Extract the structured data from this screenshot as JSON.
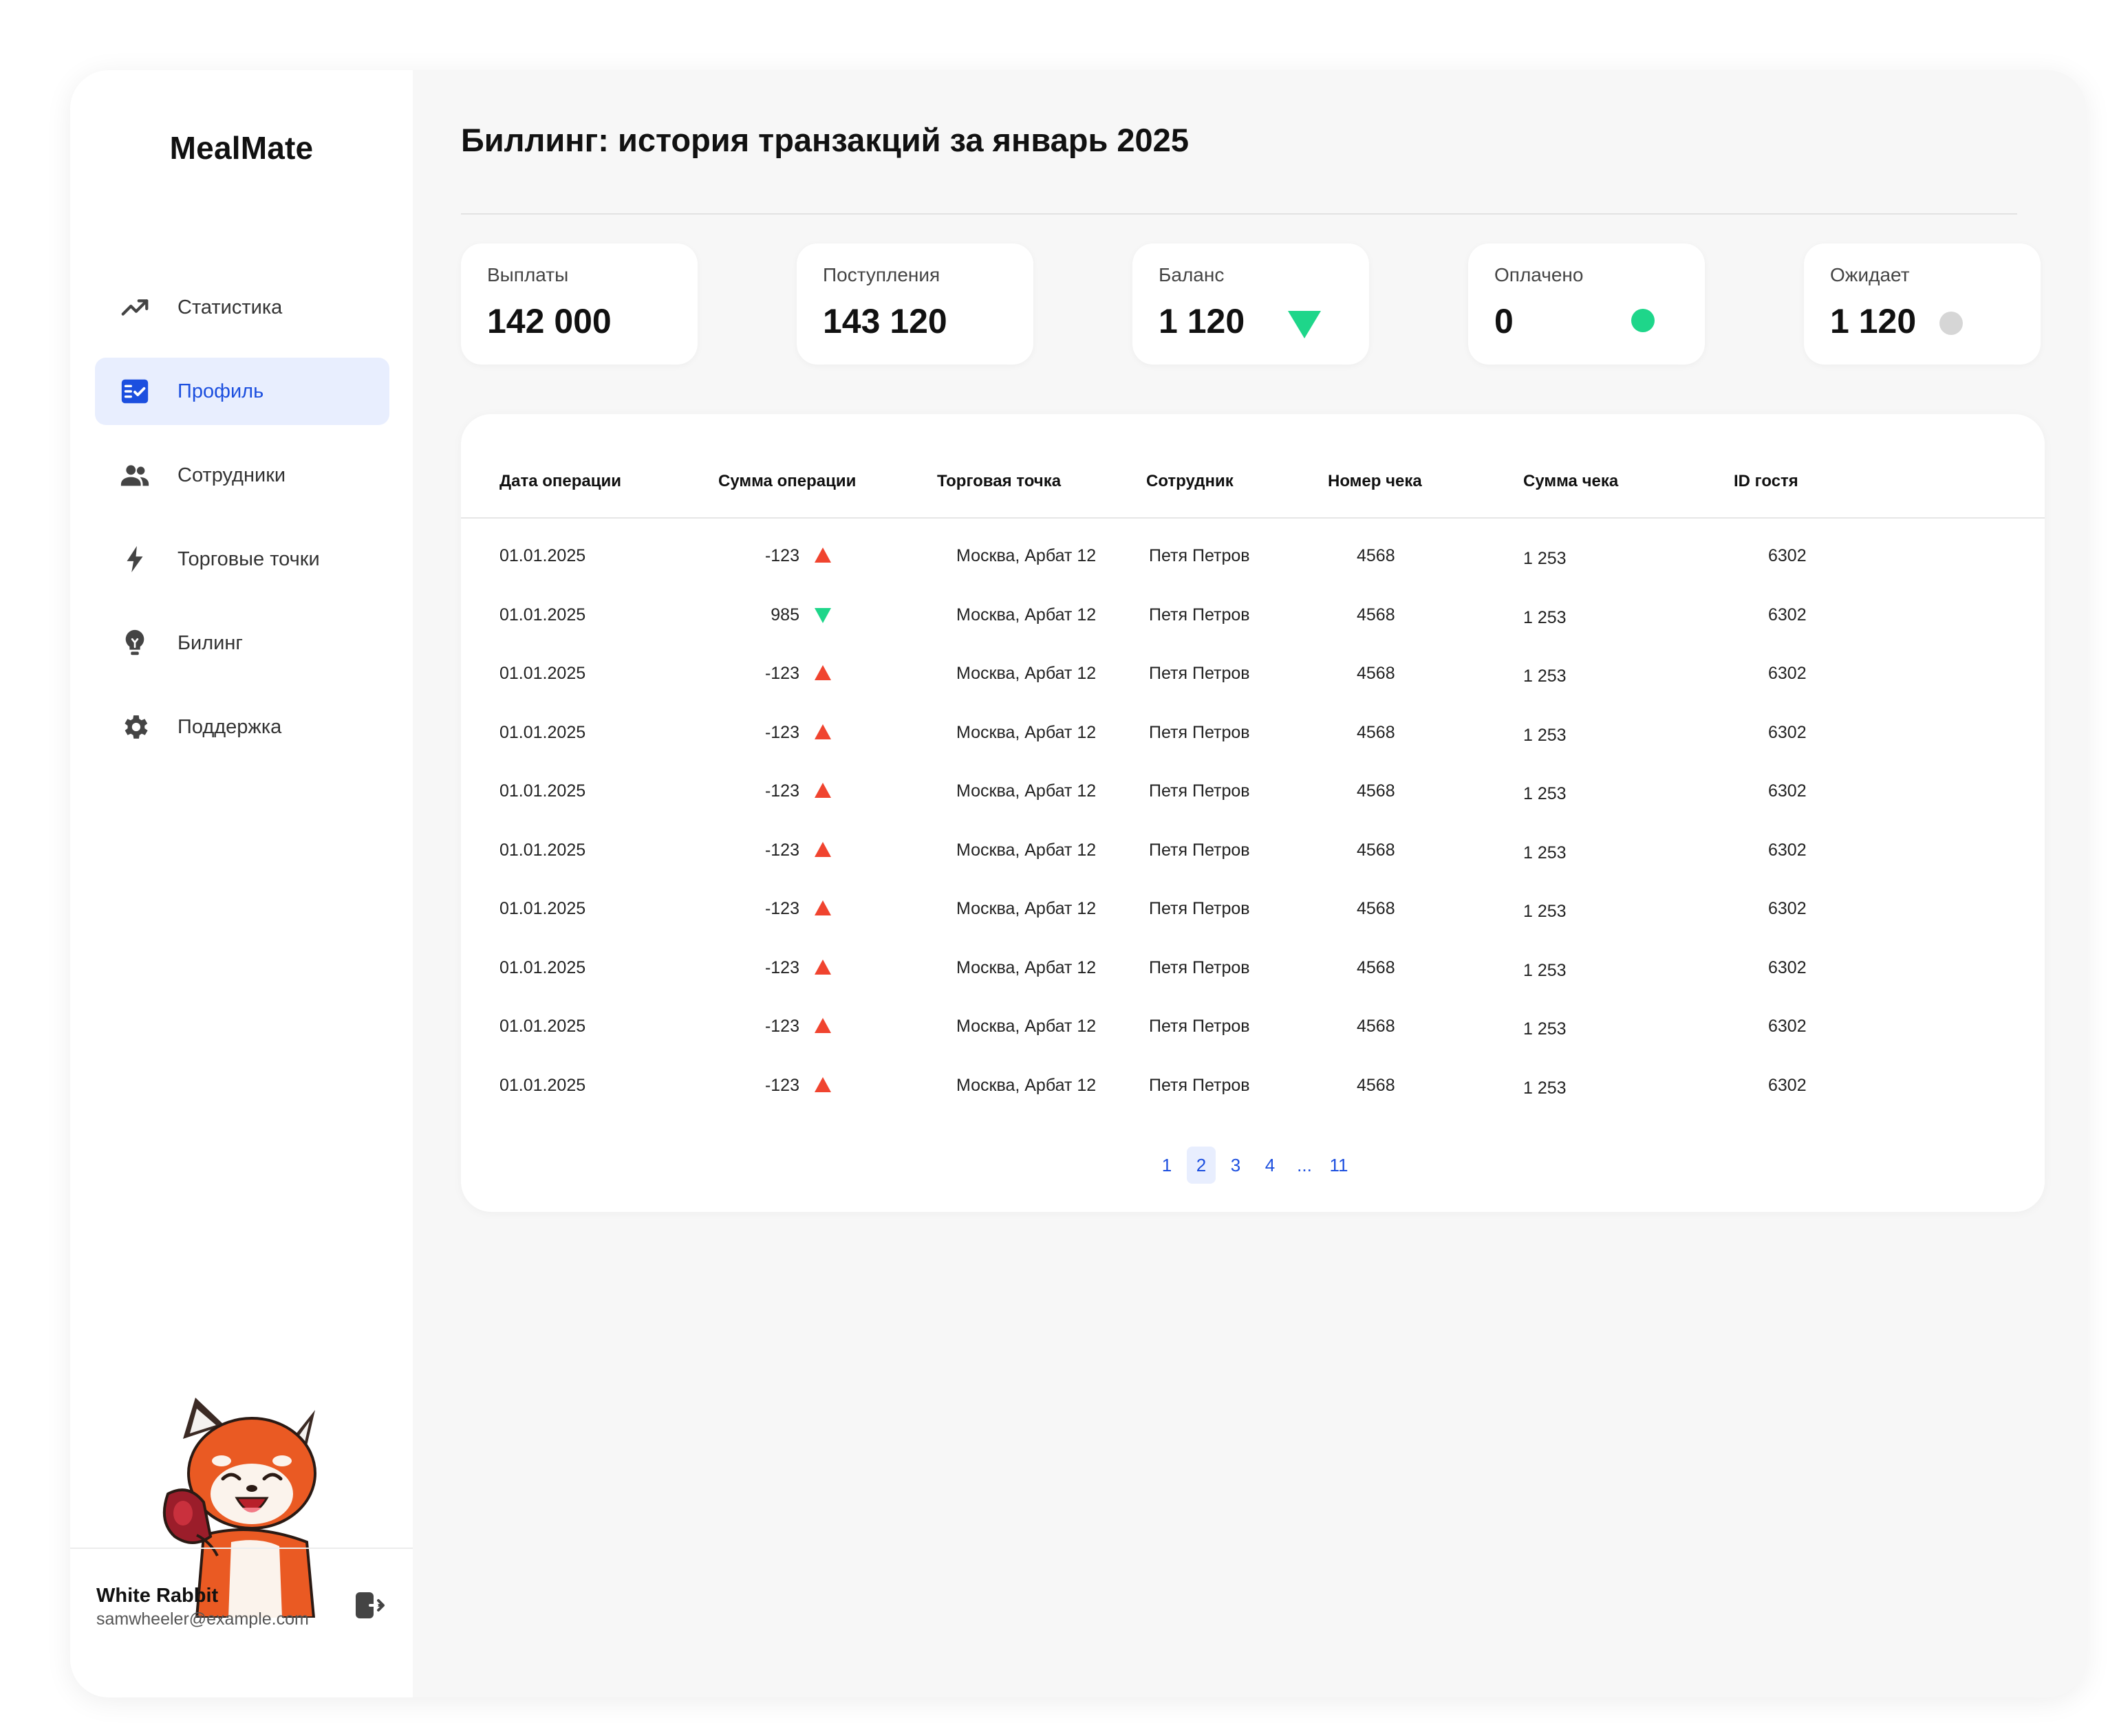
{
  "app": {
    "name": "MealMate"
  },
  "sidebar": {
    "items": [
      {
        "label": "Статистика",
        "icon": "trending-up-icon",
        "active": false
      },
      {
        "label": "Профиль",
        "icon": "checklist-icon",
        "active": true
      },
      {
        "label": "Сотрудники",
        "icon": "people-icon",
        "active": false
      },
      {
        "label": "Торговые точки",
        "icon": "lightning-icon",
        "active": false
      },
      {
        "label": "Билинг",
        "icon": "lightbulb-icon",
        "active": false
      },
      {
        "label": "Поддержка",
        "icon": "gear-icon",
        "active": false
      }
    ],
    "user": {
      "name": "White Rabbit",
      "email": "samwheeler@example.com"
    }
  },
  "page": {
    "title": "Биллинг: история транзакций за январь 2025"
  },
  "stats": [
    {
      "label": "Выплаты",
      "value": "142 000",
      "indicator": "none"
    },
    {
      "label": "Поступления",
      "value": "143 120",
      "indicator": "none"
    },
    {
      "label": "Баланс",
      "value": "1 120",
      "indicator": "triangle-down-green"
    },
    {
      "label": "Оплачено",
      "value": "0",
      "indicator": "dot-green"
    },
    {
      "label": "Ожидает",
      "value": "1 120",
      "indicator": "dot-gray"
    }
  ],
  "table": {
    "headers": [
      "Дата операции",
      "Сумма операции",
      "Торговая точка",
      "Сотрудник",
      "Номер чека",
      "Сумма чека",
      "ID гостя"
    ],
    "rows": [
      {
        "date": "01.01.2025",
        "amount": "-123",
        "trend": "up",
        "store": "Москва, Арбат 12",
        "employee": "Петя Петров",
        "receipt": "4568",
        "receipt_sum": "1 253",
        "guest_id": "6302"
      },
      {
        "date": "01.01.2025",
        "amount": "985",
        "trend": "down",
        "store": "Москва, Арбат 12",
        "employee": "Петя Петров",
        "receipt": "4568",
        "receipt_sum": "1 253",
        "guest_id": "6302"
      },
      {
        "date": "01.01.2025",
        "amount": "-123",
        "trend": "up",
        "store": "Москва, Арбат 12",
        "employee": "Петя Петров",
        "receipt": "4568",
        "receipt_sum": "1 253",
        "guest_id": "6302"
      },
      {
        "date": "01.01.2025",
        "amount": "-123",
        "trend": "up",
        "store": "Москва, Арбат 12",
        "employee": "Петя Петров",
        "receipt": "4568",
        "receipt_sum": "1 253",
        "guest_id": "6302"
      },
      {
        "date": "01.01.2025",
        "amount": "-123",
        "trend": "up",
        "store": "Москва, Арбат 12",
        "employee": "Петя Петров",
        "receipt": "4568",
        "receipt_sum": "1 253",
        "guest_id": "6302"
      },
      {
        "date": "01.01.2025",
        "amount": "-123",
        "trend": "up",
        "store": "Москва, Арбат 12",
        "employee": "Петя Петров",
        "receipt": "4568",
        "receipt_sum": "1 253",
        "guest_id": "6302"
      },
      {
        "date": "01.01.2025",
        "amount": "-123",
        "trend": "up",
        "store": "Москва, Арбат 12",
        "employee": "Петя Петров",
        "receipt": "4568",
        "receipt_sum": "1 253",
        "guest_id": "6302"
      },
      {
        "date": "01.01.2025",
        "amount": "-123",
        "trend": "up",
        "store": "Москва, Арбат 12",
        "employee": "Петя Петров",
        "receipt": "4568",
        "receipt_sum": "1 253",
        "guest_id": "6302"
      },
      {
        "date": "01.01.2025",
        "amount": "-123",
        "trend": "up",
        "store": "Москва, Арбат 12",
        "employee": "Петя Петров",
        "receipt": "4568",
        "receipt_sum": "1 253",
        "guest_id": "6302"
      },
      {
        "date": "01.01.2025",
        "amount": "-123",
        "trend": "up",
        "store": "Москва, Арбат 12",
        "employee": "Петя Петров",
        "receipt": "4568",
        "receipt_sum": "1 253",
        "guest_id": "6302"
      }
    ]
  },
  "pagination": {
    "pages": [
      "1",
      "2",
      "3",
      "4",
      "...",
      "11"
    ],
    "current": "2"
  },
  "colors": {
    "accent": "#1c4fdf",
    "accent_bg": "#e8eefe",
    "up_red": "#f0442f",
    "down_green": "#1ed68a",
    "pending_gray": "#d6d6d6"
  }
}
